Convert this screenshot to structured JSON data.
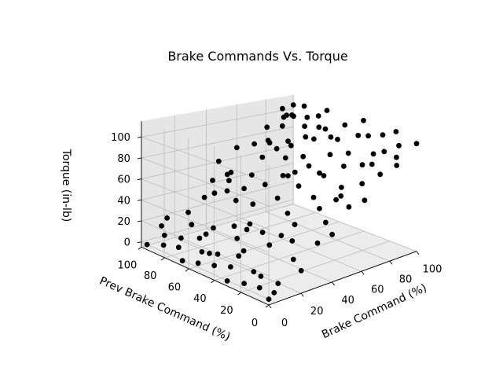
{
  "chart_data": {
    "type": "scatter",
    "title": "Brake Commands Vs. Torque",
    "xlabel": "Brake Command (%)",
    "ylabel": "Prev Brake Command (%)",
    "zlabel": "Torque (in-lb)",
    "xlim": [
      0,
      100
    ],
    "ylim": [
      0,
      100
    ],
    "zlim": [
      -5,
      115
    ],
    "xticks": [
      "0",
      "20",
      "40",
      "60",
      "80",
      "100"
    ],
    "yticks": [
      "0",
      "20",
      "40",
      "60",
      "80",
      "100"
    ],
    "zticks": [
      "0",
      "20",
      "40",
      "60",
      "80",
      "100"
    ],
    "grid": true,
    "marker_color": "#000000",
    "points": [
      [
        0,
        0,
        0
      ],
      [
        5,
        2,
        2
      ],
      [
        10,
        5,
        6
      ],
      [
        3,
        10,
        3
      ],
      [
        8,
        15,
        8
      ],
      [
        2,
        20,
        2
      ],
      [
        12,
        25,
        5
      ],
      [
        0,
        30,
        0
      ],
      [
        6,
        35,
        7
      ],
      [
        15,
        40,
        10
      ],
      [
        4,
        45,
        4
      ],
      [
        10,
        50,
        9
      ],
      [
        2,
        55,
        2
      ],
      [
        8,
        60,
        7
      ],
      [
        0,
        65,
        0
      ],
      [
        14,
        70,
        12
      ],
      [
        5,
        75,
        5
      ],
      [
        10,
        80,
        9
      ],
      [
        3,
        85,
        3
      ],
      [
        7,
        90,
        8
      ],
      [
        0,
        95,
        0
      ],
      [
        12,
        100,
        10
      ],
      [
        20,
        85,
        15
      ],
      [
        25,
        95,
        20
      ],
      [
        18,
        70,
        14
      ],
      [
        28,
        60,
        22
      ],
      [
        22,
        50,
        18
      ],
      [
        30,
        40,
        25
      ],
      [
        26,
        30,
        20
      ],
      [
        32,
        20,
        26
      ],
      [
        24,
        10,
        18
      ],
      [
        35,
        5,
        30
      ],
      [
        20,
        0,
        15
      ],
      [
        40,
        0,
        38
      ],
      [
        45,
        10,
        42
      ],
      [
        38,
        25,
        36
      ],
      [
        42,
        35,
        40
      ],
      [
        48,
        50,
        45
      ],
      [
        40,
        60,
        38
      ],
      [
        46,
        75,
        44
      ],
      [
        38,
        90,
        36
      ],
      [
        44,
        100,
        42
      ],
      [
        50,
        95,
        48
      ],
      [
        55,
        80,
        52
      ],
      [
        52,
        65,
        50
      ],
      [
        58,
        45,
        55
      ],
      [
        55,
        30,
        52
      ],
      [
        60,
        15,
        58
      ],
      [
        56,
        5,
        54
      ],
      [
        62,
        0,
        60
      ],
      [
        65,
        20,
        62
      ],
      [
        68,
        40,
        66
      ],
      [
        64,
        55,
        62
      ],
      [
        70,
        70,
        68
      ],
      [
        66,
        85,
        64
      ],
      [
        72,
        100,
        70
      ],
      [
        75,
        90,
        74
      ],
      [
        78,
        75,
        76
      ],
      [
        74,
        60,
        72
      ],
      [
        80,
        45,
        78
      ],
      [
        76,
        30,
        74
      ],
      [
        82,
        15,
        80
      ],
      [
        78,
        5,
        76
      ],
      [
        85,
        0,
        84
      ],
      [
        88,
        20,
        86
      ],
      [
        84,
        35,
        82
      ],
      [
        90,
        50,
        88
      ],
      [
        86,
        65,
        84
      ],
      [
        92,
        80,
        90
      ],
      [
        88,
        95,
        86
      ],
      [
        95,
        100,
        94
      ],
      [
        98,
        85,
        96
      ],
      [
        94,
        70,
        92
      ],
      [
        100,
        55,
        98
      ],
      [
        96,
        40,
        94
      ],
      [
        100,
        25,
        99
      ],
      [
        97,
        10,
        95
      ],
      [
        100,
        0,
        100
      ],
      [
        90,
        5,
        88
      ],
      [
        70,
        10,
        68
      ],
      [
        50,
        20,
        48
      ],
      [
        30,
        50,
        28
      ],
      [
        60,
        60,
        58
      ],
      [
        80,
        80,
        78
      ],
      [
        95,
        95,
        96
      ],
      [
        100,
        100,
        104
      ],
      [
        92,
        100,
        102
      ],
      [
        85,
        90,
        98
      ],
      [
        100,
        90,
        106
      ],
      [
        98,
        75,
        101
      ],
      [
        90,
        60,
        95
      ],
      [
        80,
        65,
        88
      ],
      [
        70,
        85,
        80
      ],
      [
        60,
        100,
        70
      ],
      [
        40,
        80,
        52
      ],
      [
        20,
        40,
        32
      ],
      [
        10,
        30,
        22
      ],
      [
        15,
        60,
        26
      ],
      [
        35,
        75,
        46
      ],
      [
        65,
        45,
        72
      ],
      [
        85,
        50,
        92
      ],
      [
        100,
        70,
        108
      ],
      [
        94,
        30,
        98
      ],
      [
        75,
        15,
        82
      ],
      [
        55,
        50,
        64
      ],
      [
        45,
        85,
        56
      ],
      [
        25,
        20,
        34
      ],
      [
        5,
        50,
        12
      ],
      [
        100,
        40,
        108
      ],
      [
        88,
        85,
        100
      ],
      [
        77,
        95,
        88
      ],
      [
        62,
        30,
        70
      ],
      [
        33,
        65,
        42
      ],
      [
        48,
        100,
        60
      ],
      [
        100,
        15,
        106
      ],
      [
        86,
        10,
        93
      ],
      [
        68,
        75,
        76
      ],
      [
        52,
        10,
        60
      ],
      [
        28,
        85,
        38
      ],
      [
        12,
        95,
        20
      ]
    ]
  }
}
